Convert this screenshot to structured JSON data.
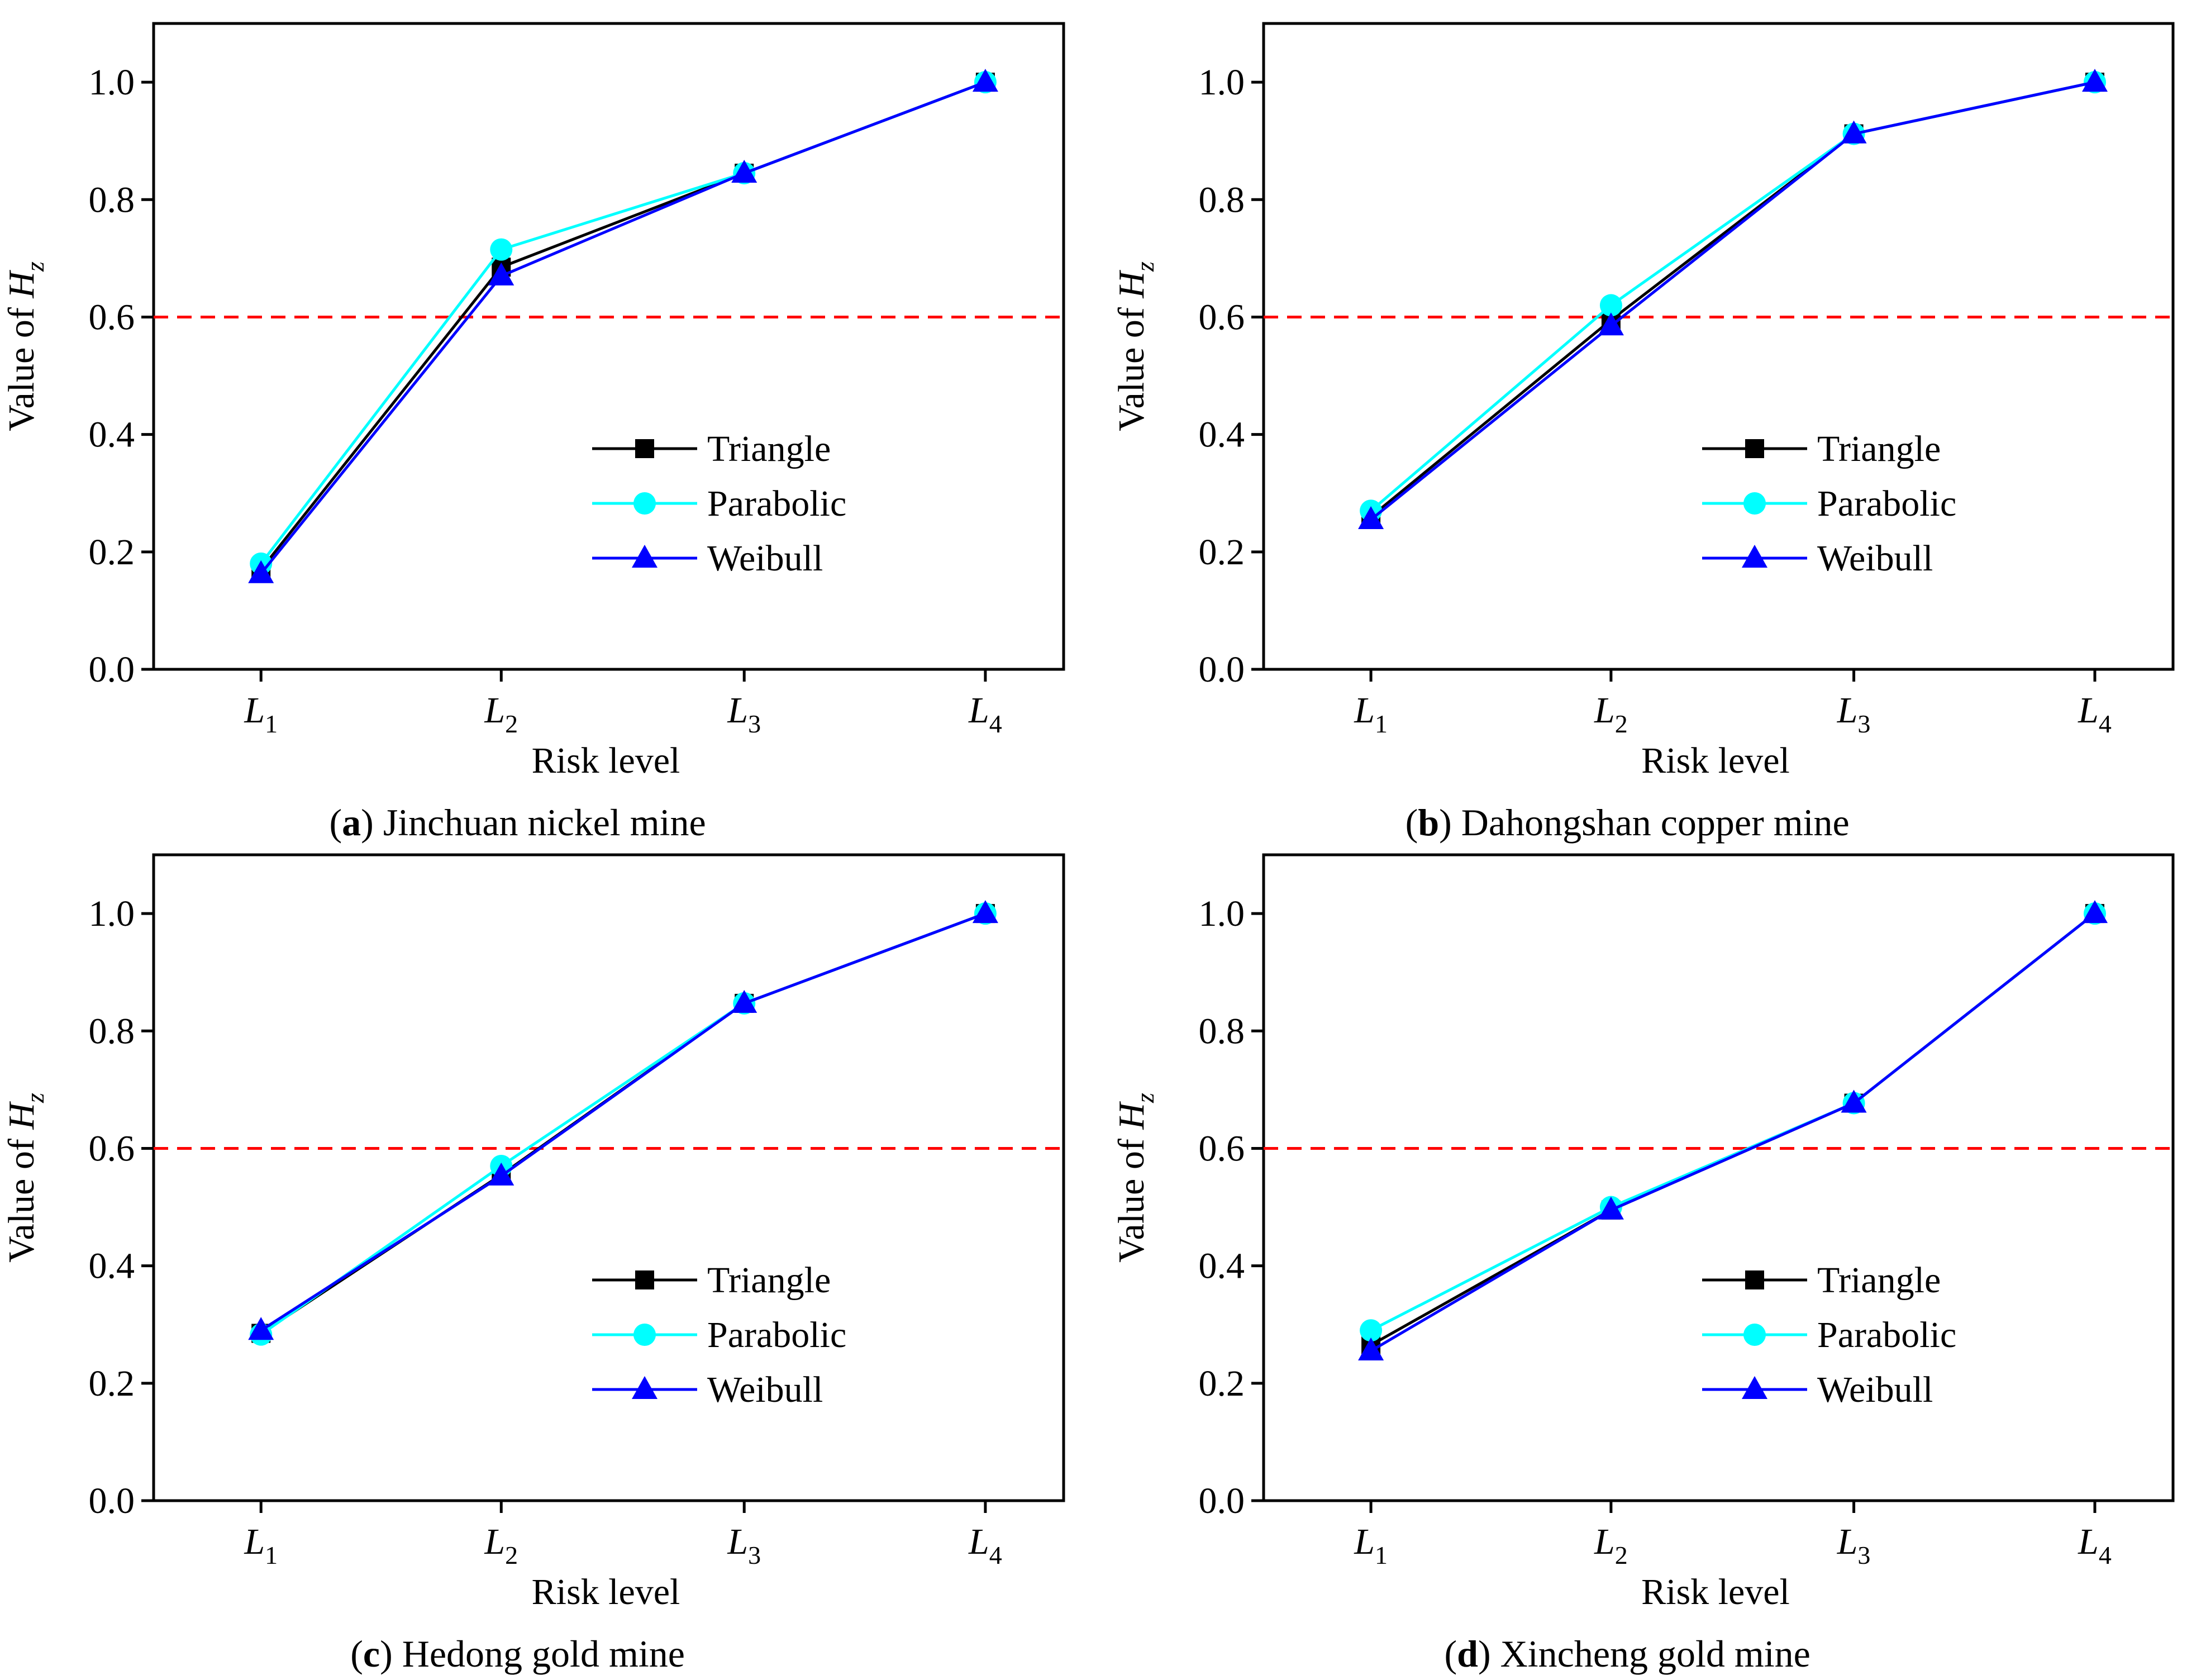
{
  "colors": {
    "Triangle": "#000000",
    "Parabolic": "#00FFFF",
    "Weibull": "#0000FF",
    "threshold": "#FF0000"
  },
  "shared": {
    "ylabel_prefix": "Value of ",
    "ylabel_var": "H",
    "ylabel_sub": "z",
    "xlabel": "Risk level",
    "xtick_letter": "L",
    "xtick_subs": [
      "1",
      "2",
      "3",
      "4"
    ],
    "ytick_labels": [
      "0.0",
      "0.2",
      "0.4",
      "0.6",
      "0.8",
      "1.0"
    ],
    "legend": [
      "Triangle",
      "Parabolic",
      "Weibull"
    ]
  },
  "chart_data": [
    {
      "type": "line",
      "caption_letter": "a",
      "caption_text": "Jinchuan nickel mine",
      "categories": [
        "L1",
        "L2",
        "L3",
        "L4"
      ],
      "xlabel": "Risk level",
      "ylabel": "Value of Hz",
      "ylim": [
        0,
        1.1
      ],
      "yticks": [
        0,
        0.2,
        0.4,
        0.6,
        0.8,
        1.0
      ],
      "threshold": 0.6,
      "legend_position": "bottom-right",
      "grid": false,
      "series": [
        {
          "name": "Triangle",
          "marker": "square",
          "values": [
            0.17,
            0.685,
            0.845,
            1.0
          ]
        },
        {
          "name": "Parabolic",
          "marker": "circle",
          "values": [
            0.18,
            0.715,
            0.845,
            1.0
          ]
        },
        {
          "name": "Weibull",
          "marker": "triangle",
          "values": [
            0.163,
            0.67,
            0.845,
            1.0
          ]
        }
      ]
    },
    {
      "type": "line",
      "caption_letter": "b",
      "caption_text": "Dahongshan copper mine",
      "categories": [
        "L1",
        "L2",
        "L3",
        "L4"
      ],
      "xlabel": "Risk level",
      "ylabel": "Value of Hz",
      "ylim": [
        0,
        1.1
      ],
      "yticks": [
        0,
        0.2,
        0.4,
        0.6,
        0.8,
        1.0
      ],
      "threshold": 0.6,
      "legend_position": "bottom-right",
      "grid": false,
      "series": [
        {
          "name": "Triangle",
          "marker": "square",
          "values": [
            0.26,
            0.595,
            0.912,
            1.0
          ]
        },
        {
          "name": "Parabolic",
          "marker": "circle",
          "values": [
            0.27,
            0.62,
            0.912,
            1.0
          ]
        },
        {
          "name": "Weibull",
          "marker": "triangle",
          "values": [
            0.255,
            0.585,
            0.912,
            1.0
          ]
        }
      ]
    },
    {
      "type": "line",
      "caption_letter": "c",
      "caption_text": "Hedong gold mine",
      "categories": [
        "L1",
        "L2",
        "L3",
        "L4"
      ],
      "xlabel": "Risk level",
      "ylabel": "Value of Hz",
      "ylim": [
        0,
        1.1
      ],
      "yticks": [
        0,
        0.2,
        0.4,
        0.6,
        0.8,
        1.0
      ],
      "threshold": 0.6,
      "legend_position": "bottom-right",
      "grid": false,
      "series": [
        {
          "name": "Triangle",
          "marker": "square",
          "values": [
            0.285,
            0.555,
            0.847,
            1.0
          ]
        },
        {
          "name": "Parabolic",
          "marker": "circle",
          "values": [
            0.283,
            0.57,
            0.847,
            1.0
          ]
        },
        {
          "name": "Weibull",
          "marker": "triangle",
          "values": [
            0.29,
            0.553,
            0.847,
            1.0
          ]
        }
      ]
    },
    {
      "type": "line",
      "caption_letter": "d",
      "caption_text": "Xincheng gold mine",
      "categories": [
        "L1",
        "L2",
        "L3",
        "L4"
      ],
      "xlabel": "Risk level",
      "ylabel": "Value of Hz",
      "ylim": [
        0,
        1.1
      ],
      "yticks": [
        0,
        0.2,
        0.4,
        0.6,
        0.8,
        1.0
      ],
      "threshold": 0.6,
      "legend_position": "bottom-right",
      "grid": false,
      "series": [
        {
          "name": "Triangle",
          "marker": "square",
          "values": [
            0.265,
            0.495,
            0.677,
            1.0
          ]
        },
        {
          "name": "Parabolic",
          "marker": "circle",
          "values": [
            0.29,
            0.5,
            0.677,
            1.0
          ]
        },
        {
          "name": "Weibull",
          "marker": "triangle",
          "values": [
            0.255,
            0.495,
            0.677,
            1.0
          ]
        }
      ]
    }
  ]
}
